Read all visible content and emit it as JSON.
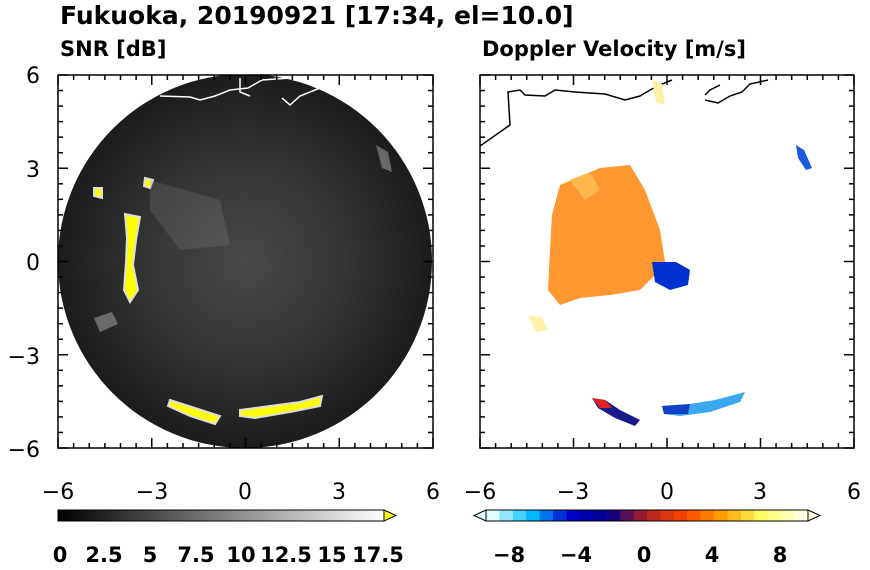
{
  "title": "Fukuoka, 20190921 [17:34, el=10.0]",
  "panels": [
    {
      "title": "SNR [dB]",
      "id": "snr"
    },
    {
      "title": "Doppler Velocity [m/s]",
      "id": "doppler"
    }
  ],
  "chart_data": [
    {
      "type": "heatmap",
      "title": "SNR [dB]",
      "xlim": [
        -6,
        6
      ],
      "ylim": [
        -6,
        6
      ],
      "xticks": [
        "−6",
        "−3",
        "0",
        "3",
        "6"
      ],
      "yticks": [
        "6",
        "3",
        "0",
        "−3",
        "−6"
      ],
      "colorbar": {
        "range": [
          0,
          18
        ],
        "extend": "max",
        "tick_labels": [
          "0",
          "2.5",
          "5",
          "7.5",
          "10",
          "12.5",
          "15",
          "17.5"
        ],
        "colors": [
          "#000000",
          "#ffffff",
          "#ffff00"
        ]
      }
    },
    {
      "type": "heatmap",
      "title": "Doppler Velocity [m/s]",
      "xlim": [
        -6,
        6
      ],
      "ylim": [
        -6,
        6
      ],
      "xticks": [
        "−6",
        "−3",
        "0",
        "3",
        "6"
      ],
      "colorbar": {
        "range": [
          -10,
          10
        ],
        "extend": "both",
        "tick_labels": [
          "−8",
          "−4",
          "0",
          "4",
          "8"
        ],
        "colors": [
          "#e0ffff",
          "#00bfff",
          "#0000cd",
          "#00008b",
          "#b22222",
          "#ff4500",
          "#ffa500",
          "#ffff66",
          "#ffffe0"
        ]
      }
    }
  ]
}
